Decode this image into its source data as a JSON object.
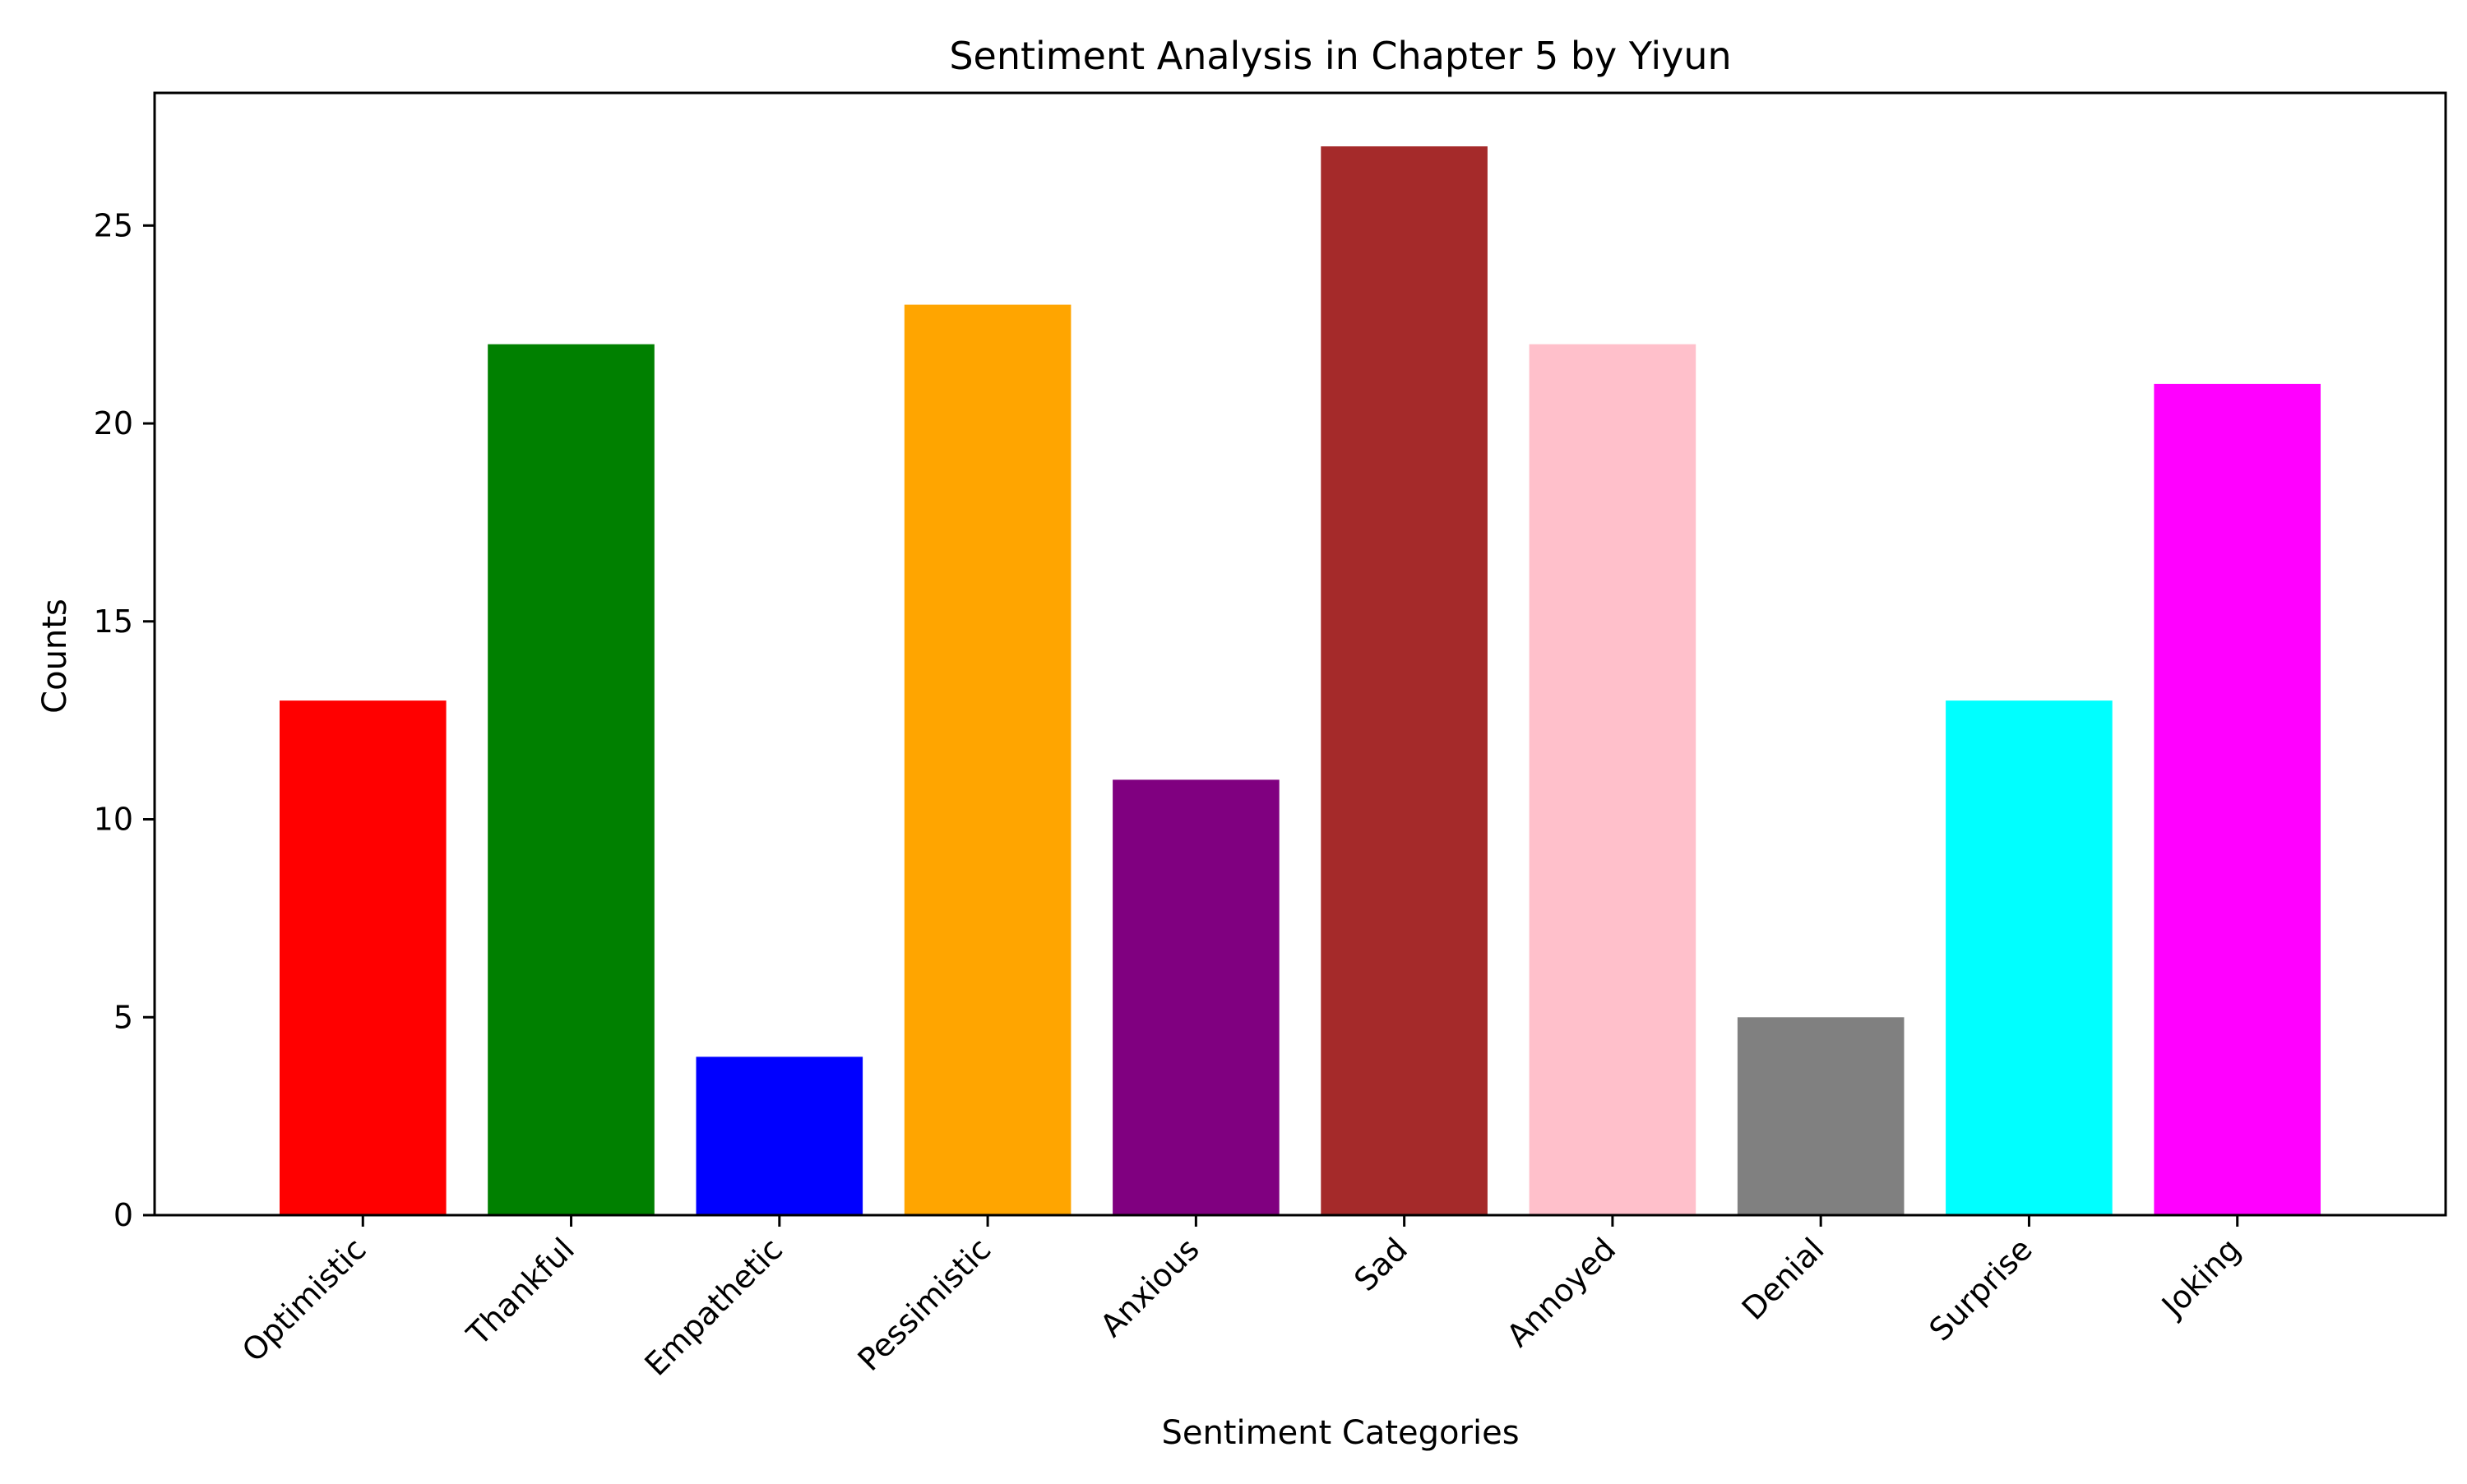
{
  "chart_data": {
    "type": "bar",
    "title": "Sentiment Analysis in Chapter 5 by Yiyun",
    "xlabel": "Sentiment Categories",
    "ylabel": "Counts",
    "categories": [
      "Optimistic",
      "Thankful",
      "Empathetic",
      "Pessimistic",
      "Anxious",
      "Sad",
      "Annoyed",
      "Denial",
      "Surprise",
      "Joking"
    ],
    "values": [
      13,
      22,
      4,
      23,
      11,
      27,
      22,
      5,
      13,
      21
    ],
    "colors": [
      "#ff0000",
      "#008000",
      "#0000ff",
      "#ffa500",
      "#800080",
      "#a52a2a",
      "#ffc0cb",
      "#808080",
      "#00ffff",
      "#ff00ff"
    ],
    "ylim": [
      0,
      28.35
    ],
    "yticks": [
      0,
      5,
      10,
      15,
      20,
      25
    ],
    "grid": false,
    "legend": "none"
  }
}
